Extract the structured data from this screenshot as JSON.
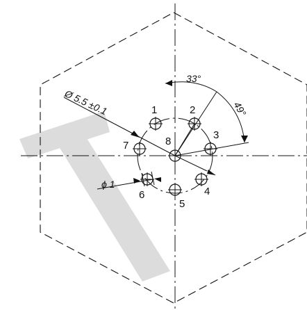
{
  "drawing": {
    "pin_labels": [
      "1",
      "2",
      "3",
      "4",
      "5",
      "6",
      "7",
      "8"
    ],
    "pitch_diameter_label": "Ø 5.5 ±0.1",
    "pin_diameter_label": "ϕ 1",
    "angle_1_label": "33°",
    "angle_2_label": "49°",
    "watermark_color": "#dcdcdc"
  }
}
